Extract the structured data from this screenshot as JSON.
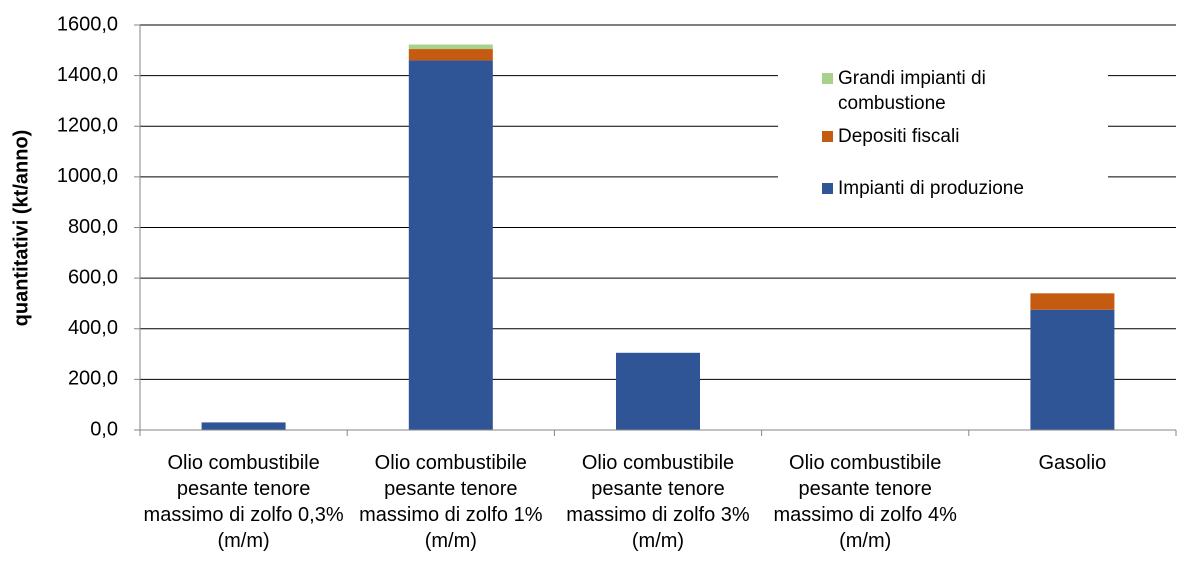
{
  "chart_data": {
    "type": "stacked_bar",
    "y_label": "quantitativi (kt/anno)",
    "categories": [
      "Olio combustibile pesante tenore massimo di zolfo 0,3% (m/m)",
      "Olio combustibile pesante tenore massimo di zolfo 1% (m/m)",
      "Olio combustibile pesante tenore massimo di zolfo 3% (m/m)",
      "Olio combustibile pesante tenore massimo di zolfo 4% (m/m)",
      "Gasolio"
    ],
    "series": [
      {
        "name": "Impianti di produzione",
        "color": "#2f5597",
        "values": [
          30,
          1460,
          305,
          0,
          475
        ]
      },
      {
        "name": "Depositi fiscali",
        "color": "#c55a11",
        "values": [
          0,
          45,
          0,
          0,
          65
        ]
      },
      {
        "name": "Grandi impianti di combustione",
        "color": "#a9d18e",
        "values": [
          0,
          18,
          0,
          0,
          0
        ]
      }
    ],
    "ylim": [
      0,
      1600
    ],
    "yticks": [
      {
        "value": 0,
        "label": "0,0"
      },
      {
        "value": 200,
        "label": "200,0"
      },
      {
        "value": 400,
        "label": "400,0"
      },
      {
        "value": 600,
        "label": "600,0"
      },
      {
        "value": 800,
        "label": "800,0"
      },
      {
        "value": 1000,
        "label": "1000,0"
      },
      {
        "value": 1200,
        "label": "1200,0"
      },
      {
        "value": 1400,
        "label": "1400,0"
      },
      {
        "value": 1600,
        "label": "1600,0"
      }
    ],
    "grid": true,
    "legend": "upper right"
  }
}
